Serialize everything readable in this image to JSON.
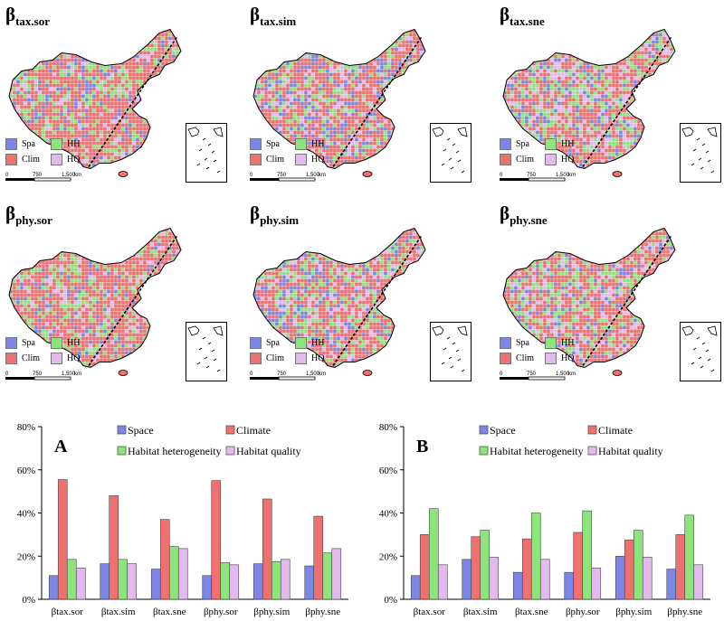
{
  "maps": [
    {
      "beta": "β",
      "sub": "tax.sor",
      "key": "tax_sor"
    },
    {
      "beta": "β",
      "sub": "tax.sim",
      "key": "tax_sim"
    },
    {
      "beta": "β",
      "sub": "tax.sne",
      "key": "tax_sne"
    },
    {
      "beta": "β",
      "sub": "phy.sor",
      "key": "phy_sor"
    },
    {
      "beta": "β",
      "sub": "phy.sim",
      "key": "phy_sim"
    },
    {
      "beta": "β",
      "sub": "phy.sne",
      "key": "phy_sne"
    }
  ],
  "map_legend": {
    "spa": "Spa",
    "hh": "HH",
    "clim": "Clim",
    "hq": "HQ"
  },
  "scale": {
    "t0": "0",
    "t1": "750",
    "t2": "1,500",
    "unit": "km"
  },
  "colors": {
    "space": "#7b86e6",
    "climate": "#f07070",
    "hh": "#8ce57b",
    "hq": "#e4b9f0"
  },
  "chart_data": [
    {
      "type": "bar",
      "panel_label": "A",
      "categories": [
        "βtax.sor",
        "βtax.sim",
        "βtax.sne",
        "βphy.sor",
        "βphy.sim",
        "βphy.sne"
      ],
      "series": [
        {
          "name": "Space",
          "values": [
            11,
            16.5,
            14,
            11,
            16.5,
            15.5
          ]
        },
        {
          "name": "Climate",
          "values": [
            55.5,
            48,
            37,
            55,
            46.5,
            38.5
          ]
        },
        {
          "name": "Habitat heterogeneity",
          "values": [
            18.5,
            18.5,
            24.5,
            17,
            17.5,
            21.5
          ]
        },
        {
          "name": "Habitat quality",
          "values": [
            14.5,
            16.5,
            23.5,
            16,
            18.5,
            23.5
          ]
        }
      ],
      "yticks": [
        "0%",
        "20%",
        "40%",
        "60%",
        "80%"
      ],
      "ylim": [
        0,
        80
      ]
    },
    {
      "type": "bar",
      "panel_label": "B",
      "categories": [
        "βtax.sor",
        "βtax.sim",
        "βtax.sne",
        "βphy.sor",
        "βphy.sim",
        "βphy.sne"
      ],
      "series": [
        {
          "name": "Space",
          "values": [
            11,
            18.5,
            12.5,
            12.5,
            20,
            14
          ]
        },
        {
          "name": "Climate",
          "values": [
            30,
            29,
            28,
            31,
            27.5,
            30
          ]
        },
        {
          "name": "Habitat heterogeneity",
          "values": [
            42,
            32,
            40,
            41,
            32,
            39
          ]
        },
        {
          "name": "Habitat quality",
          "values": [
            16,
            19.5,
            18.5,
            14.5,
            19.5,
            16
          ]
        }
      ],
      "yticks": [
        "0%",
        "20%",
        "40%",
        "60%",
        "80%"
      ],
      "ylim": [
        0,
        80
      ]
    }
  ]
}
